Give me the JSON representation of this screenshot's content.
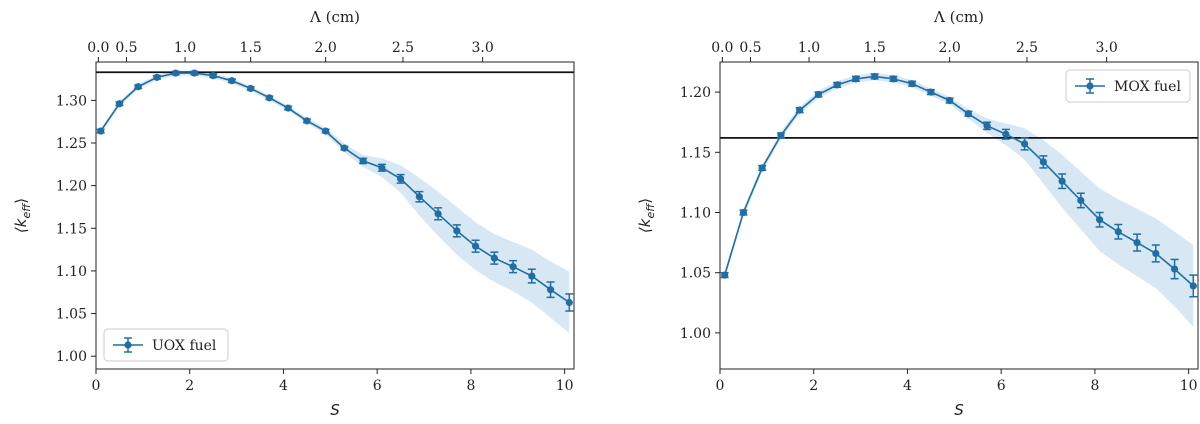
{
  "chart_data": [
    {
      "type": "line",
      "xlabel": "S",
      "ylabel": "⟨k_eff⟩",
      "ylabel_main": "⟨k",
      "ylabel_sub": "eff",
      "ylabel_close": "⟩",
      "top_xlabel": "Λ (cm)",
      "xlim": [
        0,
        10.2
      ],
      "ylim": [
        0.985,
        1.345
      ],
      "x_ticks": [
        0,
        2,
        4,
        6,
        8,
        10
      ],
      "y_ticks": [
        1.0,
        1.05,
        1.1,
        1.15,
        1.2,
        1.25,
        1.3
      ],
      "top_ticks": [
        {
          "label": "0.0",
          "s": 0.05
        },
        {
          "label": "0.5",
          "s": 0.65
        },
        {
          "label": "1.0",
          "s": 1.9
        },
        {
          "label": "1.5",
          "s": 3.3
        },
        {
          "label": "2.0",
          "s": 4.9
        },
        {
          "label": "2.5",
          "s": 6.55
        },
        {
          "label": "3.0",
          "s": 8.25
        }
      ],
      "reference_line": 1.333,
      "legend": {
        "label": "UOX fuel",
        "placement": "lower left"
      },
      "series": [
        {
          "name": "UOX fuel",
          "color": "#1f6fa6",
          "x": [
            0.1,
            0.5,
            0.9,
            1.3,
            1.7,
            2.1,
            2.5,
            2.9,
            3.3,
            3.7,
            4.1,
            4.5,
            4.9,
            5.3,
            5.7,
            6.1,
            6.5,
            6.9,
            7.3,
            7.7,
            8.1,
            8.5,
            8.9,
            9.3,
            9.7,
            10.1
          ],
          "y": [
            1.264,
            1.296,
            1.316,
            1.327,
            1.332,
            1.332,
            1.329,
            1.323,
            1.314,
            1.303,
            1.291,
            1.276,
            1.264,
            1.244,
            1.229,
            1.221,
            1.208,
            1.187,
            1.167,
            1.147,
            1.129,
            1.115,
            1.105,
            1.094,
            1.078,
            1.063
          ],
          "err": [
            0.002,
            0.002,
            0.002,
            0.002,
            0.002,
            0.002,
            0.002,
            0.002,
            0.002,
            0.002,
            0.002,
            0.002,
            0.002,
            0.002,
            0.003,
            0.004,
            0.005,
            0.006,
            0.007,
            0.007,
            0.007,
            0.007,
            0.007,
            0.008,
            0.009,
            0.01
          ],
          "band_half_width": [
            0.003,
            0.003,
            0.003,
            0.003,
            0.003,
            0.003,
            0.003,
            0.003,
            0.003,
            0.003,
            0.003,
            0.003,
            0.004,
            0.005,
            0.007,
            0.011,
            0.016,
            0.022,
            0.026,
            0.028,
            0.028,
            0.028,
            0.029,
            0.031,
            0.033,
            0.036
          ]
        }
      ]
    },
    {
      "type": "line",
      "xlabel": "S",
      "ylabel": "⟨k_eff⟩",
      "ylabel_main": "⟨k",
      "ylabel_sub": "eff",
      "ylabel_close": "⟩",
      "top_xlabel": "Λ (cm)",
      "xlim": [
        0,
        10.2
      ],
      "ylim": [
        0.97,
        1.225
      ],
      "x_ticks": [
        0,
        2,
        4,
        6,
        8,
        10
      ],
      "y_ticks": [
        1.0,
        1.05,
        1.1,
        1.15,
        1.2
      ],
      "top_ticks": [
        {
          "label": "0.0",
          "s": 0.05
        },
        {
          "label": "0.5",
          "s": 0.65
        },
        {
          "label": "1.0",
          "s": 1.9
        },
        {
          "label": "1.5",
          "s": 3.3
        },
        {
          "label": "2.0",
          "s": 4.9
        },
        {
          "label": "2.5",
          "s": 6.55
        },
        {
          "label": "3.0",
          "s": 8.25
        }
      ],
      "reference_line": 1.162,
      "legend": {
        "label": "MOX fuel",
        "placement": "upper right"
      },
      "series": [
        {
          "name": "MOX fuel",
          "color": "#1f6fa6",
          "x": [
            0.1,
            0.5,
            0.9,
            1.3,
            1.7,
            2.1,
            2.5,
            2.9,
            3.3,
            3.7,
            4.1,
            4.5,
            4.9,
            5.3,
            5.7,
            6.1,
            6.5,
            6.9,
            7.3,
            7.7,
            8.1,
            8.5,
            8.9,
            9.3,
            9.7,
            10.1
          ],
          "y": [
            1.048,
            1.1,
            1.137,
            1.164,
            1.185,
            1.198,
            1.206,
            1.211,
            1.213,
            1.211,
            1.207,
            1.2,
            1.193,
            1.182,
            1.172,
            1.165,
            1.157,
            1.142,
            1.126,
            1.11,
            1.094,
            1.084,
            1.075,
            1.066,
            1.053,
            1.039
          ],
          "err": [
            0.002,
            0.002,
            0.002,
            0.002,
            0.002,
            0.002,
            0.002,
            0.002,
            0.002,
            0.002,
            0.002,
            0.002,
            0.002,
            0.002,
            0.003,
            0.004,
            0.005,
            0.005,
            0.006,
            0.006,
            0.006,
            0.006,
            0.007,
            0.007,
            0.008,
            0.009
          ],
          "band_half_width": [
            0.003,
            0.003,
            0.003,
            0.003,
            0.003,
            0.003,
            0.003,
            0.003,
            0.003,
            0.003,
            0.003,
            0.003,
            0.003,
            0.004,
            0.006,
            0.009,
            0.013,
            0.018,
            0.022,
            0.024,
            0.026,
            0.027,
            0.028,
            0.029,
            0.031,
            0.034
          ]
        }
      ]
    }
  ]
}
